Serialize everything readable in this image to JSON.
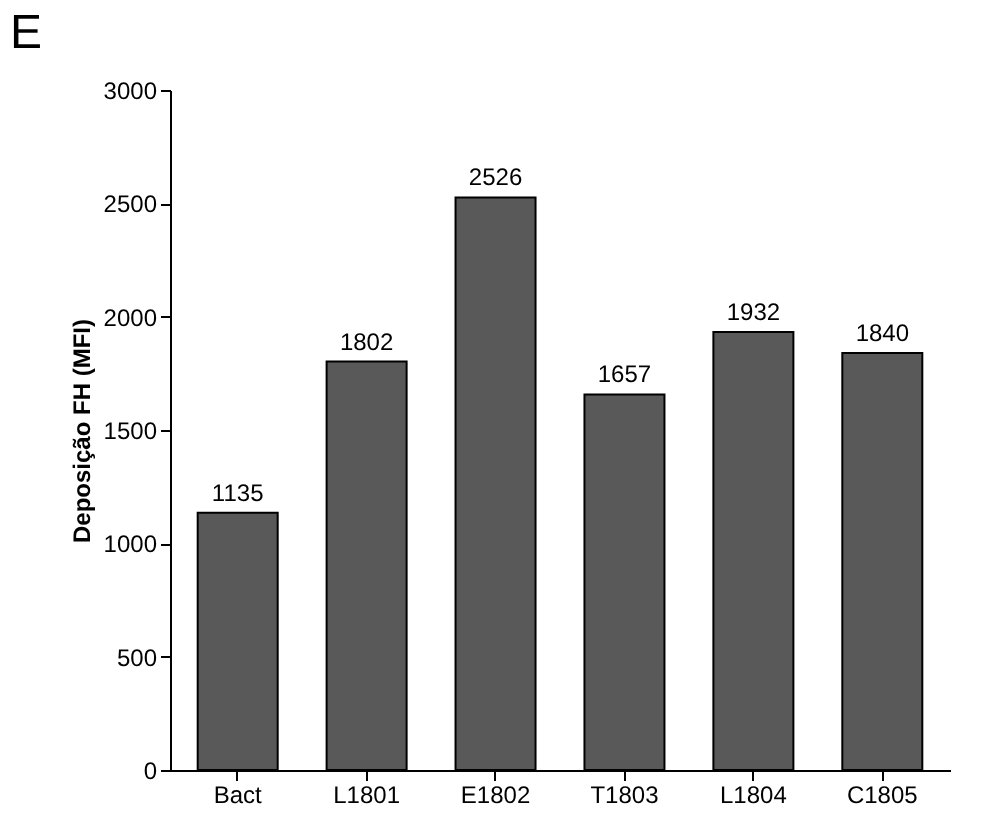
{
  "chart_data": {
    "type": "bar",
    "title": "E",
    "ylabel": "Deposição FH (MFI)",
    "categories": [
      "Bact",
      "L1801",
      "E1802",
      "T1803",
      "L1804",
      "C1805"
    ],
    "values": [
      1135,
      1802,
      2526,
      1657,
      1932,
      1840
    ],
    "color": "#595959",
    "ylim": [
      0,
      3000
    ],
    "yticks": [
      0,
      500,
      1000,
      1500,
      2000,
      2500,
      3000
    ],
    "grid": false,
    "data_labels": true
  }
}
